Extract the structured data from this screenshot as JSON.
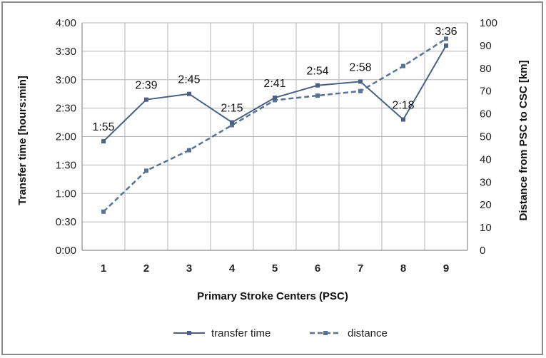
{
  "chart_data": {
    "type": "line",
    "categories": [
      "1",
      "2",
      "3",
      "4",
      "5",
      "6",
      "7",
      "8",
      "9"
    ],
    "xlabel": "Primary Stroke Centers (PSC)",
    "ylabel": "Transfer time [hours:min]",
    "y2label": "Distance from PSC to CSC [km]",
    "y_ticks": [
      "0:00",
      "0:30",
      "1:00",
      "1:30",
      "2:00",
      "2:30",
      "3:00",
      "3:30",
      "4:00"
    ],
    "y_range_minutes": [
      0,
      240
    ],
    "y2_ticks": [
      "0",
      "10",
      "20",
      "30",
      "40",
      "50",
      "60",
      "70",
      "80",
      "90",
      "100"
    ],
    "y2_range": [
      0,
      100
    ],
    "grid": true,
    "legend_position": "bottom",
    "series": [
      {
        "name": "transfer time",
        "axis": "left",
        "style": "solid",
        "color": "#4a6184",
        "values_minutes": [
          115,
          159,
          165,
          135,
          161,
          174,
          178,
          138,
          216
        ],
        "labels": [
          "1:55",
          "2:39",
          "2:45",
          "2:15",
          "2:41",
          "2:54",
          "2:58",
          "2:18",
          "3:36"
        ]
      },
      {
        "name": "distance",
        "axis": "right",
        "style": "dashed",
        "color": "#5a7294",
        "values": [
          17,
          35,
          44,
          55,
          66,
          68,
          70,
          81,
          93
        ]
      }
    ]
  }
}
